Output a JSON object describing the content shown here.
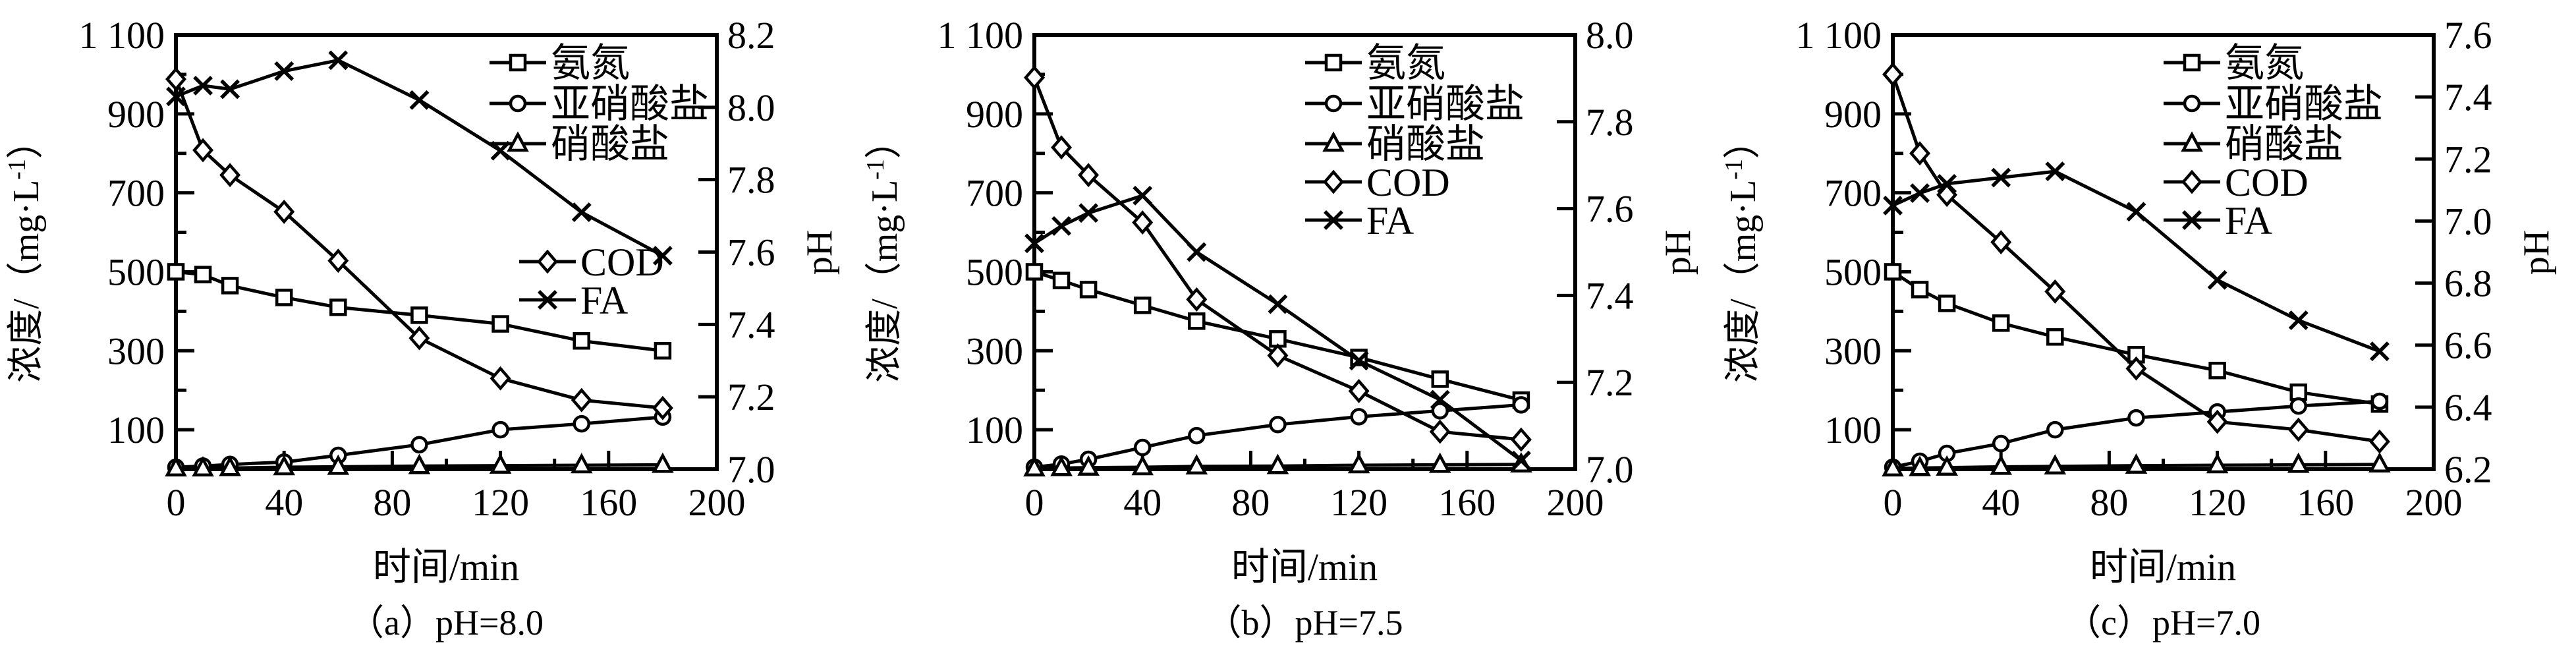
{
  "figure": {
    "background": "#ffffff",
    "line_color": "#000000"
  },
  "shared": {
    "x": [
      0,
      10,
      20,
      40,
      60,
      90,
      120,
      150,
      180
    ],
    "x_range": [
      0,
      200
    ],
    "x_ticks_major": [
      0,
      40,
      80,
      120,
      160,
      200
    ],
    "x_tick_labels": [
      "0",
      "40",
      "80",
      "120",
      "160",
      "200"
    ],
    "x_ticks_minor": [
      20,
      60,
      100,
      140,
      180
    ],
    "xlabel": "时间/min",
    "left_ticks_major": [
      100,
      300,
      500,
      700,
      900,
      1100
    ],
    "left_tick_labels": [
      "100",
      "300",
      "500",
      "700",
      "900",
      "1 100"
    ],
    "left_ticks_minor": [
      200,
      400,
      600,
      800,
      1000
    ],
    "left_range": [
      0,
      1100
    ],
    "ylabel_prefix": "浓度/（mg·L",
    "ylabel_sup": "-1",
    "ylabel_suffix": "）",
    "right_label": "pH"
  },
  "chart_data": [
    {
      "type": "line",
      "panel": "a",
      "caption": "（a）pH=8.0",
      "legend_layout": "split",
      "left_axis": {
        "label": "浓度/（mg·L-1）",
        "range": [
          0,
          1100
        ]
      },
      "right_axis": {
        "label": "pH",
        "range": [
          7.0,
          8.2
        ],
        "ticks": [
          8.2,
          8.0,
          7.8,
          7.6,
          7.4,
          7.2,
          7.0
        ],
        "tick_labels": [
          "8.2",
          "8.0",
          "7.8",
          "7.6",
          "7.4",
          "7.2",
          "7.0"
        ]
      },
      "series": [
        {
          "id": "ammonia",
          "name": "氨氮",
          "marker": "square",
          "axis": "left",
          "values": [
            500,
            493,
            465,
            435,
            410,
            390,
            368,
            325,
            300
          ]
        },
        {
          "id": "nitrite",
          "name": "亚硝酸盐",
          "marker": "circle",
          "axis": "left",
          "values": [
            5,
            8,
            12,
            18,
            35,
            62,
            100,
            115,
            132
          ]
        },
        {
          "id": "nitrate",
          "name": "硝酸盐",
          "marker": "triangle",
          "axis": "left",
          "values": [
            2,
            2,
            3,
            5,
            6,
            8,
            9,
            10,
            11
          ]
        },
        {
          "id": "cod",
          "name": "COD",
          "marker": "diamond",
          "axis": "left",
          "values": [
            988,
            808,
            745,
            652,
            528,
            332,
            230,
            175,
            155
          ]
        },
        {
          "id": "fa",
          "name": "FA",
          "marker": "xcross",
          "axis": "right",
          "values": [
            8.03,
            8.06,
            8.05,
            8.1,
            8.13,
            8.02,
            7.88,
            7.71,
            7.59
          ]
        }
      ]
    },
    {
      "type": "line",
      "panel": "b",
      "caption": "（b）pH=7.5",
      "legend_layout": "column",
      "left_axis": {
        "label": "浓度/（mg·L-1）",
        "range": [
          0,
          1100
        ]
      },
      "right_axis": {
        "label": "pH",
        "range": [
          7.0,
          8.0
        ],
        "ticks": [
          8.0,
          7.8,
          7.6,
          7.4,
          7.2,
          7.0
        ],
        "tick_labels": [
          "8.0",
          "7.8",
          "7.6",
          "7.4",
          "7.2",
          "7.0"
        ]
      },
      "series": [
        {
          "id": "ammonia",
          "name": "氨氮",
          "marker": "square",
          "axis": "left",
          "values": [
            500,
            478,
            455,
            415,
            375,
            330,
            283,
            228,
            175
          ]
        },
        {
          "id": "nitrite",
          "name": "亚硝酸盐",
          "marker": "circle",
          "axis": "left",
          "values": [
            5,
            13,
            25,
            55,
            85,
            113,
            133,
            148,
            163
          ]
        },
        {
          "id": "nitrate",
          "name": "硝酸盐",
          "marker": "triangle",
          "axis": "left",
          "values": [
            2,
            3,
            4,
            5,
            7,
            8,
            10,
            11,
            12
          ]
        },
        {
          "id": "cod",
          "name": "COD",
          "marker": "diamond",
          "axis": "left",
          "values": [
            992,
            815,
            745,
            625,
            430,
            288,
            198,
            95,
            75
          ]
        },
        {
          "id": "fa",
          "name": "FA",
          "marker": "xcross",
          "axis": "right",
          "values": [
            7.52,
            7.56,
            7.59,
            7.63,
            7.5,
            7.38,
            7.25,
            7.16,
            7.02
          ]
        }
      ]
    },
    {
      "type": "line",
      "panel": "c",
      "caption": "（c）pH=7.0",
      "legend_layout": "column",
      "left_axis": {
        "label": "浓度/（mg·L-1）",
        "range": [
          0,
          1100
        ]
      },
      "right_axis": {
        "label": "pH",
        "range": [
          6.2,
          7.6
        ],
        "ticks": [
          7.6,
          7.4,
          7.2,
          7.0,
          6.8,
          6.6,
          6.4,
          6.2
        ],
        "tick_labels": [
          "7.6",
          "7.4",
          "7.2",
          "7.0",
          "6.8",
          "6.6",
          "6.4",
          "6.2"
        ]
      },
      "series": [
        {
          "id": "ammonia",
          "name": "氨氮",
          "marker": "square",
          "axis": "left",
          "values": [
            500,
            455,
            420,
            370,
            335,
            290,
            250,
            195,
            165
          ]
        },
        {
          "id": "nitrite",
          "name": "亚硝酸盐",
          "marker": "circle",
          "axis": "left",
          "values": [
            5,
            20,
            40,
            65,
            100,
            130,
            145,
            160,
            172
          ]
        },
        {
          "id": "nitrate",
          "name": "硝酸盐",
          "marker": "triangle",
          "axis": "left",
          "values": [
            2,
            3,
            4,
            6,
            7,
            9,
            10,
            11,
            12
          ]
        },
        {
          "id": "cod",
          "name": "COD",
          "marker": "diamond",
          "axis": "left",
          "values": [
            1000,
            800,
            695,
            575,
            450,
            255,
            120,
            100,
            70
          ]
        },
        {
          "id": "fa",
          "name": "FA",
          "marker": "xcross",
          "axis": "right",
          "values": [
            7.05,
            7.09,
            7.12,
            7.14,
            7.16,
            7.03,
            6.81,
            6.68,
            6.58
          ]
        }
      ]
    }
  ]
}
